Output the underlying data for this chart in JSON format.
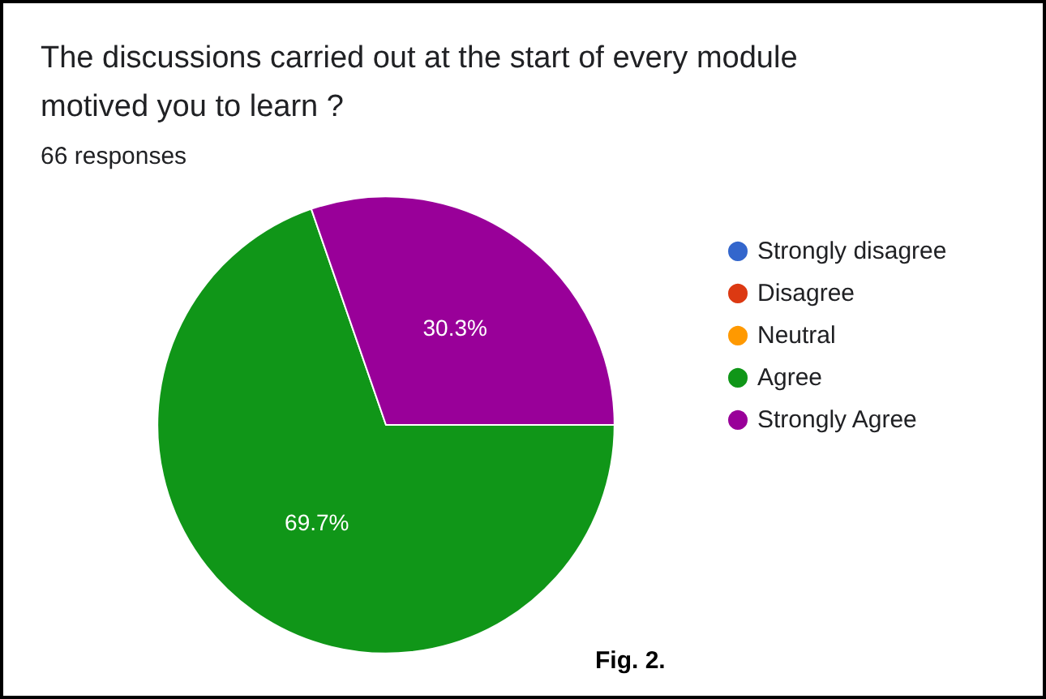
{
  "chart_data": {
    "type": "pie",
    "title": "The discussions carried out at the start of every module\nmotived you to learn ?",
    "subtitle": "66 responses",
    "categories": [
      "Strongly disagree",
      "Disagree",
      "Neutral",
      "Agree",
      "Strongly Agree"
    ],
    "values": [
      0,
      0,
      0,
      69.7,
      30.3
    ],
    "colors": [
      "#3366cc",
      "#dc3912",
      "#ff9900",
      "#109618",
      "#990099"
    ],
    "value_labels": [
      null,
      null,
      null,
      "69.7%",
      "30.3%"
    ],
    "legend": "right",
    "annotations": [
      "Fig. 2."
    ]
  }
}
